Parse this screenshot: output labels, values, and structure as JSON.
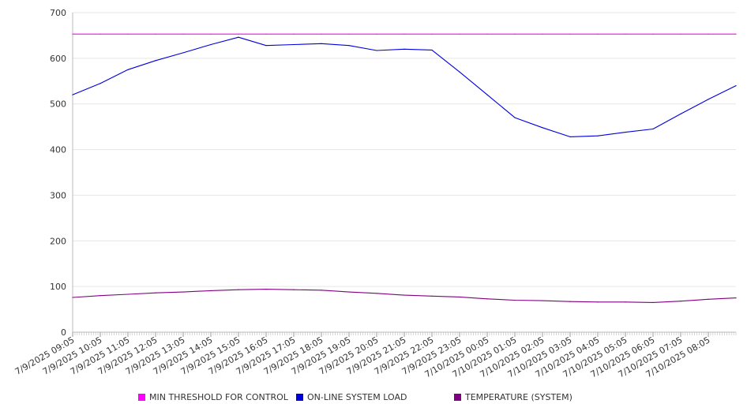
{
  "chart_data": {
    "type": "line",
    "title": "",
    "xlabel": "",
    "ylabel": "",
    "ylim": [
      0,
      700
    ],
    "y_ticks": [
      "0",
      "100",
      "200",
      "300",
      "400",
      "500",
      "600",
      "700"
    ],
    "x_tick_labels": [
      "7/9/2025 09:05",
      "7/9/2025 10:05",
      "7/9/2025 11:05",
      "7/9/2025 12:05",
      "7/9/2025 13:05",
      "7/9/2025 14:05",
      "7/9/2025 15:05",
      "7/9/2025 16:05",
      "7/9/2025 17:05",
      "7/9/2025 18:05",
      "7/9/2025 19:05",
      "7/9/2025 20:05",
      "7/9/2025 21:05",
      "7/9/2025 22:05",
      "7/9/2025 23:05",
      "7/10/2025 00:05",
      "7/10/2025 01:05",
      "7/10/2025 02:05",
      "7/10/2025 03:05",
      "7/10/2025 04:05",
      "7/10/2025 05:05",
      "7/10/2025 06:05",
      "7/10/2025 07:05",
      "7/10/2025 08:05"
    ],
    "x": [
      "09:05",
      "10:05",
      "11:05",
      "12:05",
      "13:05",
      "14:05",
      "15:05",
      "16:05",
      "17:05",
      "18:05",
      "19:05",
      "20:05",
      "21:05",
      "22:05",
      "23:05",
      "00:05",
      "01:05",
      "02:05",
      "03:05",
      "04:05",
      "05:05",
      "06:05",
      "07:05",
      "08:05",
      "09:05"
    ],
    "grid": true,
    "legend_position": "bottom",
    "series": [
      {
        "name": "MIN THRESHOLD FOR CONTROL",
        "color": "#ff00ff",
        "values": [
          653,
          653,
          653,
          653,
          653,
          653,
          653,
          653,
          653,
          653,
          653,
          653,
          653,
          653,
          653,
          653,
          653,
          653,
          653,
          653,
          653,
          653,
          653,
          653,
          653
        ]
      },
      {
        "name": "ON-LINE SYSTEM LOAD",
        "color": "#0000dd",
        "values": [
          520,
          545,
          575,
          595,
          612,
          630,
          646,
          628,
          630,
          632,
          628,
          617,
          620,
          618,
          570,
          520,
          470,
          448,
          428,
          430,
          438,
          445,
          478,
          510,
          540
        ]
      },
      {
        "name": "TEMPERATURE (SYSTEM)",
        "color": "#800080",
        "values": [
          76,
          80,
          83,
          86,
          88,
          91,
          93,
          94,
          93,
          92,
          88,
          85,
          81,
          79,
          77,
          73,
          70,
          69,
          67,
          66,
          66,
          65,
          68,
          72,
          75
        ]
      }
    ]
  }
}
